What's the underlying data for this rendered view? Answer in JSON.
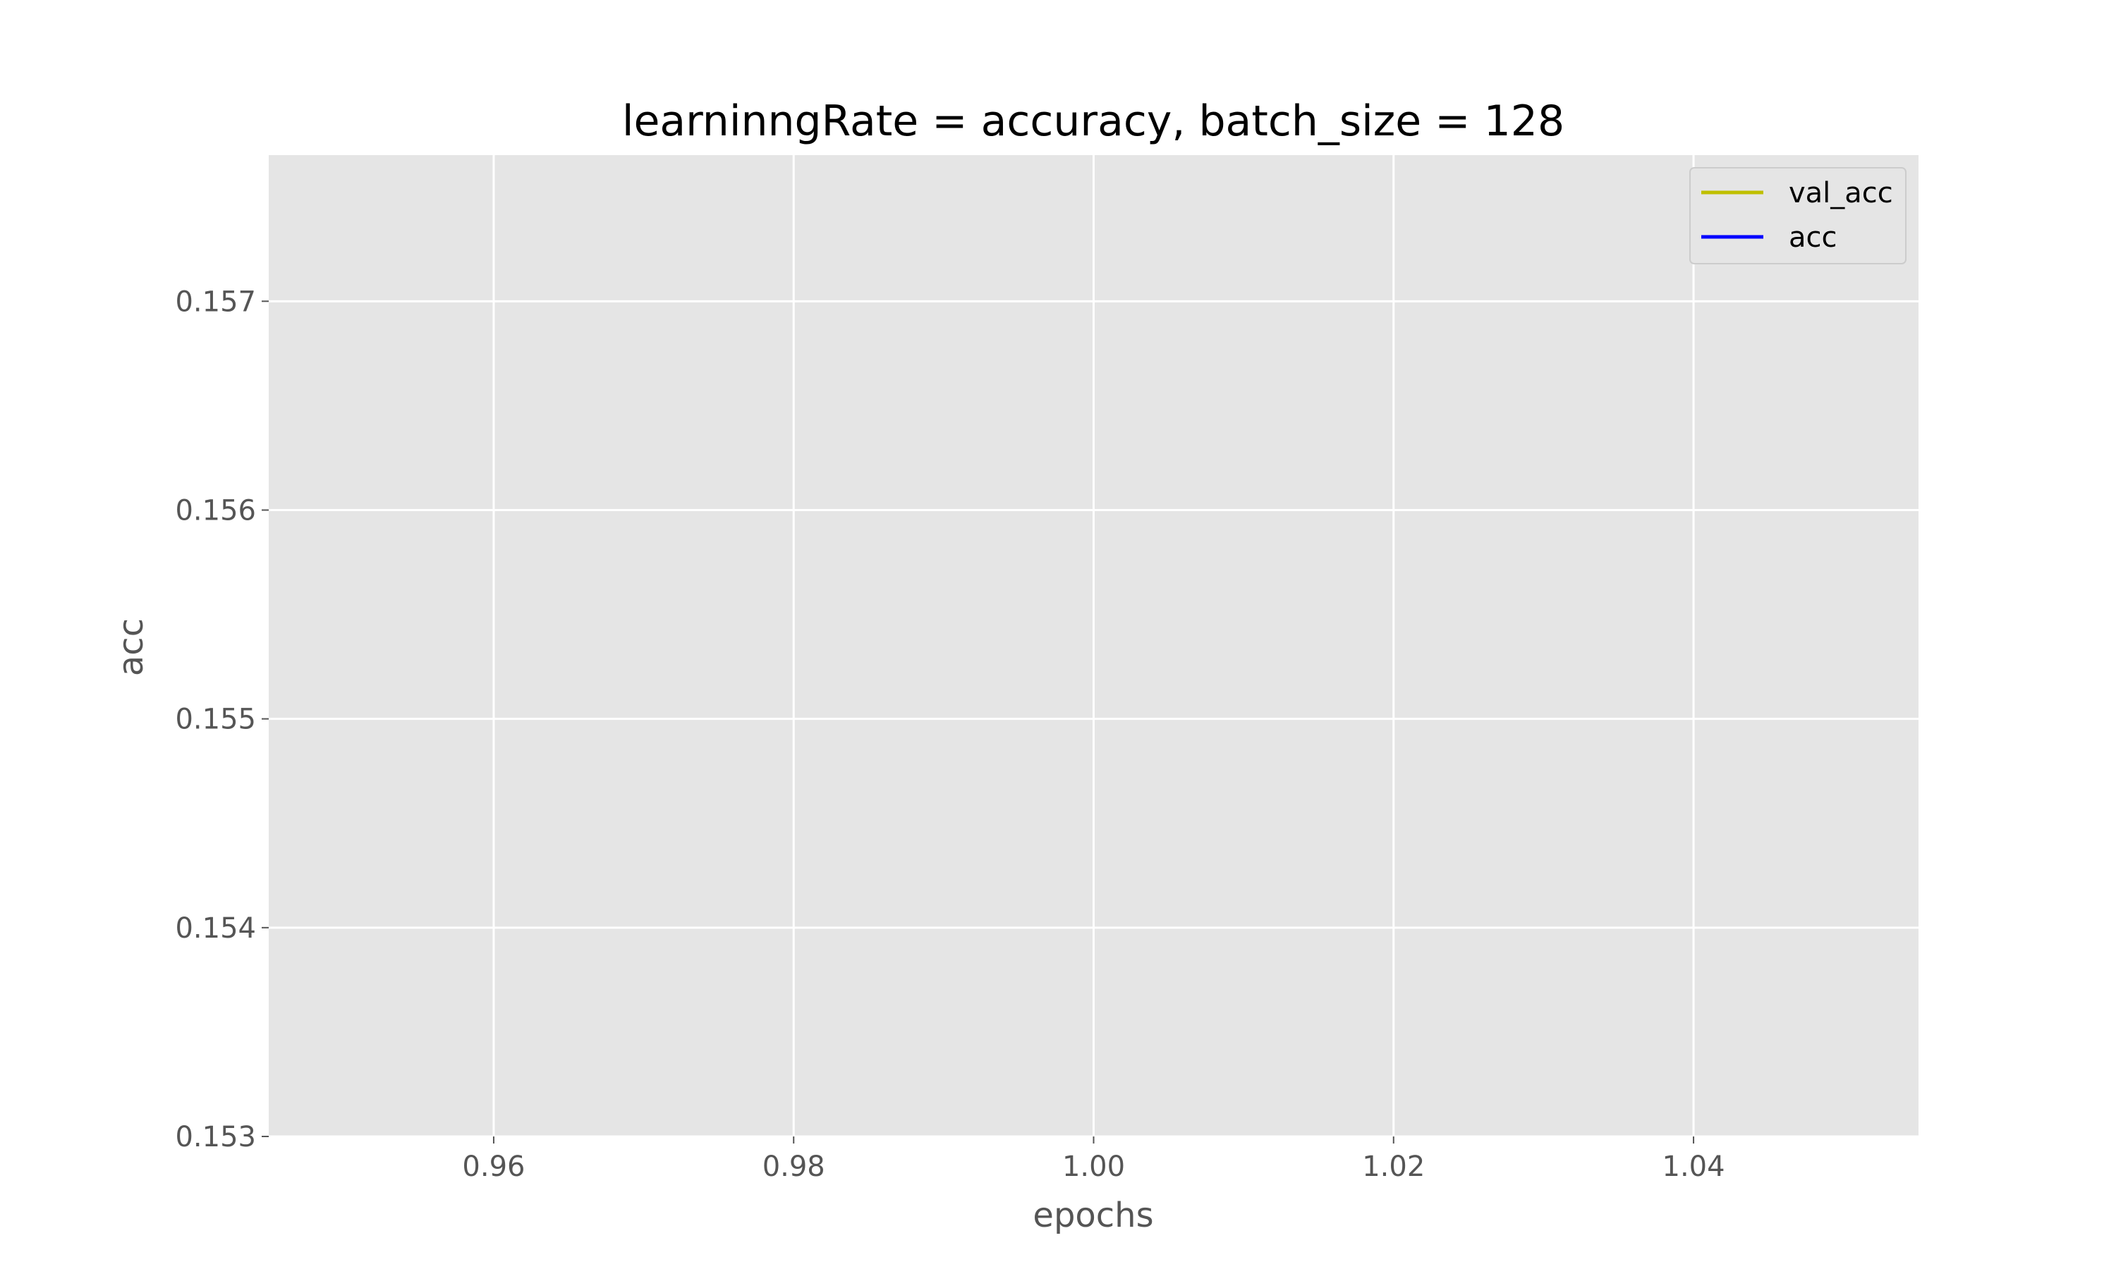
{
  "chart_data": {
    "type": "line",
    "title": "learninngRate = accuracy, batch_size = 128",
    "xlabel": "epochs",
    "ylabel": "acc",
    "xlim": [
      0.945,
      1.055
    ],
    "ylim": [
      0.153,
      0.1577
    ],
    "xticks": [
      0.96,
      0.98,
      1.0,
      1.02,
      1.04
    ],
    "xtick_labels": [
      "0.96",
      "0.98",
      "1.00",
      "1.02",
      "1.04"
    ],
    "yticks": [
      0.153,
      0.154,
      0.155,
      0.156,
      0.157
    ],
    "ytick_labels": [
      "0.153",
      "0.154",
      "0.155",
      "0.156",
      "0.157"
    ],
    "grid": true,
    "legend_position": "top-right",
    "series": [
      {
        "name": "val_acc",
        "color": "#bfbf00",
        "x": [],
        "y": []
      },
      {
        "name": "acc",
        "color": "#0000ff",
        "x": [],
        "y": []
      }
    ],
    "colors": {
      "plot_background": "#e5e5e5",
      "grid": "#ffffff",
      "tick_text": "#555555"
    }
  }
}
